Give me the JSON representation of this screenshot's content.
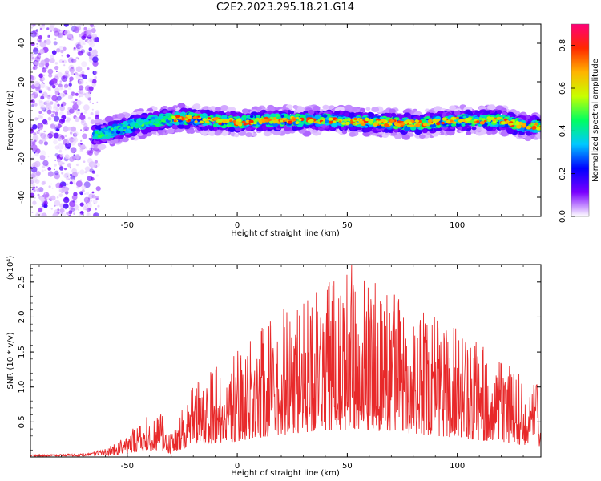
{
  "chart_data": [
    {
      "type": "heatmap",
      "title": "C2E2.2023.295.18.21.G14",
      "xlabel": "Height of straight line (km)",
      "ylabel": "Frequency (Hz)",
      "xlim": [
        -94,
        138
      ],
      "ylim": [
        -50,
        50
      ],
      "xticks": [
        -50,
        0,
        50,
        100
      ],
      "yticks": [
        -40,
        -20,
        0,
        20,
        40
      ],
      "colorbar": {
        "label": "Normalized spectral amplitude",
        "range": [
          0,
          0.9
        ],
        "ticks": [
          "0.0",
          "0.2",
          "0.4",
          "0.6",
          "0.8"
        ],
        "colormap": [
          "#ffffff",
          "#7a00ff",
          "#0000ff",
          "#00c8ff",
          "#00ff60",
          "#c8ff00",
          "#ffb400",
          "#ff2800",
          "#ff0078"
        ]
      },
      "features": {
        "noise_region_x": [
          -94,
          -63
        ],
        "ridge": {
          "x": [
            -65,
            -55,
            -45,
            -35,
            -25,
            -15,
            0,
            20,
            40,
            60,
            80,
            100,
            120,
            130,
            138
          ],
          "frequency_hz": [
            -8,
            -5,
            -2,
            0,
            1,
            0,
            -1,
            0,
            0,
            -1,
            -2,
            0,
            0,
            -3,
            -3
          ]
        }
      }
    },
    {
      "type": "line",
      "xlabel": "Height of straight line (km)",
      "ylabel": "SNR (10 * v/v)",
      "y_multiplier": "(x10⁴)",
      "xlim": [
        -94,
        138
      ],
      "ylim": [
        0,
        27500
      ],
      "xticks": [
        -50,
        0,
        50,
        100
      ],
      "yticks": [
        "0.5",
        "1.0",
        "1.5",
        "2.0",
        "2.5"
      ],
      "series": [
        {
          "color": "#e8292a",
          "envelope": {
            "x": [
              -94,
              -70,
              -62,
              -55,
              -50,
              -45,
              -40,
              -35,
              -30,
              -25,
              -20,
              -10,
              0,
              10,
              20,
              30,
              40,
              50,
              60,
              70,
              80,
              90,
              100,
              110,
              120,
              130,
              138
            ],
            "y": [
              200,
              300,
              600,
              1200,
              2000,
              3000,
              3500,
              3800,
              2000,
              4500,
              6000,
              7500,
              9000,
              11000,
              12500,
              14000,
              15000,
              15500,
              15000,
              14000,
              13000,
              12000,
              11000,
              9500,
              8500,
              7000,
              6000
            ]
          },
          "peaks": [
            {
              "x": 36,
              "y": 23500
            },
            {
              "x": 52,
              "y": 27500
            },
            {
              "x": 48,
              "y": 22000
            },
            {
              "x": 60,
              "y": 20000
            },
            {
              "x": 70,
              "y": 18000
            }
          ]
        }
      ]
    }
  ]
}
